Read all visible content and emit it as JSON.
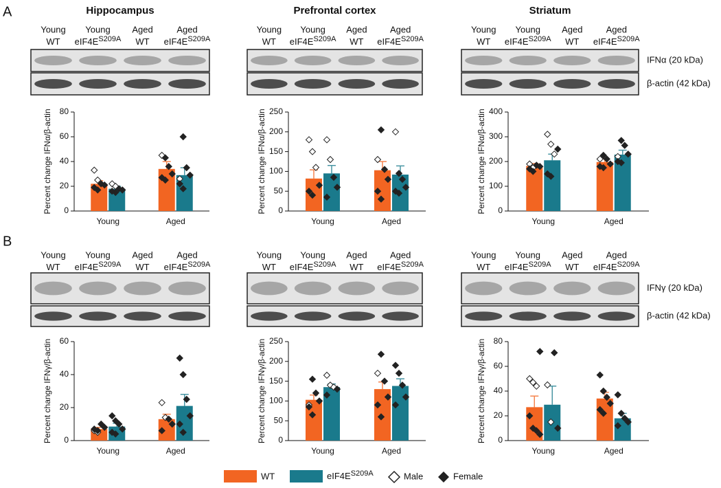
{
  "panels": [
    {
      "letter": "A",
      "target": "IFNα (20 kDa)",
      "control": "β-actin (42 kDa)"
    },
    {
      "letter": "B",
      "target": "IFNγ (20 kDa)",
      "control": "β-actin (42 kDa)"
    }
  ],
  "lanes": [
    {
      "age": "Young",
      "genotype": "WT"
    },
    {
      "age": "Young",
      "genotype": "eIF4E",
      "sup": "S209A"
    },
    {
      "age": "Aged",
      "genotype": "WT"
    },
    {
      "age": "Aged",
      "genotype": "eIF4E",
      "sup": "S209A"
    }
  ],
  "legend": {
    "male": "Male",
    "female": "Female"
  },
  "chart_data": [
    {
      "type": "bar",
      "title": "Hippocampus",
      "ylabel": "Percent change IFNα/β-actin",
      "categories": [
        "Young",
        "Aged"
      ],
      "ylim": [
        0,
        80
      ],
      "yticks": [
        0,
        20,
        40,
        60,
        80
      ],
      "series": [
        {
          "name": "WT",
          "color": "#f26522",
          "values": [
            22,
            34
          ],
          "errors": [
            2.5,
            6
          ],
          "male": [
            [
              33,
              25
            ],
            [
              45
            ]
          ],
          "female": [
            [
              22,
              21,
              19,
              17
            ],
            [
              43,
              36,
              30,
              27,
              25
            ]
          ]
        },
        {
          "name": "eIF4E",
          "name_sup": "S209A",
          "color": "#1a7a8c",
          "values": [
            18,
            29
          ],
          "errors": [
            2,
            6
          ],
          "male": [
            [
              22,
              20
            ],
            [
              26
            ]
          ],
          "female": [
            [
              18,
              17,
              16,
              15
            ],
            [
              60,
              35,
              29,
              22,
              18
            ]
          ]
        }
      ]
    },
    {
      "type": "bar",
      "title": "Prefrontal cortex",
      "ylabel": "Percent change IFNα/β-actin",
      "categories": [
        "Young",
        "Aged"
      ],
      "ylim": [
        0,
        250
      ],
      "yticks": [
        0,
        50,
        100,
        150,
        200,
        250
      ],
      "series": [
        {
          "name": "WT",
          "color": "#f26522",
          "values": [
            82,
            103
          ],
          "errors": [
            22,
            22
          ],
          "male": [
            [
              180,
              150,
              110
            ],
            [
              130
            ]
          ],
          "female": [
            [
              65,
              50,
              40
            ],
            [
              205,
              105,
              80,
              50,
              30
            ]
          ]
        },
        {
          "name": "eIF4E",
          "name_sup": "S209A",
          "color": "#1a7a8c",
          "values": [
            95,
            92
          ],
          "errors": [
            20,
            22
          ],
          "male": [
            [
              180,
              130
            ],
            [
              200
            ]
          ],
          "female": [
            [
              85,
              60,
              35
            ],
            [
              95,
              80,
              60,
              50,
              45
            ]
          ]
        }
      ]
    },
    {
      "type": "bar",
      "title": "Striatum",
      "ylabel": "Percent change IFNα/β-actin",
      "categories": [
        "Young",
        "Aged"
      ],
      "ylim": [
        0,
        400
      ],
      "yticks": [
        0,
        100,
        200,
        300,
        400
      ],
      "series": [
        {
          "name": "WT",
          "color": "#f26522",
          "values": [
            182,
            198
          ],
          "errors": [
            10,
            12
          ],
          "male": [
            [
              190,
              175
            ],
            [
              210
            ]
          ],
          "female": [
            [
              185,
              180,
              170,
              160
            ],
            [
              225,
              210,
              190,
              180,
              175
            ]
          ]
        },
        {
          "name": "eIF4E",
          "name_sup": "S209A",
          "color": "#1a7a8c",
          "values": [
            205,
            228
          ],
          "errors": [
            25,
            18
          ],
          "male": [
            [
              310,
              270,
              230
            ],
            [
              220
            ]
          ],
          "female": [
            [
              250,
              150,
              140
            ],
            [
              285,
              265,
              230,
              200,
              195
            ]
          ]
        }
      ]
    },
    {
      "type": "bar",
      "ylabel": "Percent change IFNγ/β-actin",
      "categories": [
        "Young",
        "Aged"
      ],
      "ylim": [
        0,
        60
      ],
      "yticks": [
        0,
        20,
        40,
        60
      ],
      "series": [
        {
          "name": "WT",
          "color": "#f26522",
          "values": [
            7,
            13
          ],
          "errors": [
            1,
            3
          ],
          "male": [
            [
              6,
              5
            ],
            [
              23,
              14
            ]
          ],
          "female": [
            [
              10,
              8,
              7,
              6
            ],
            [
              13,
              10,
              6
            ]
          ]
        },
        {
          "name": "eIF4E",
          "name_sup": "S209A",
          "color": "#1a7a8c",
          "values": [
            8.5,
            21
          ],
          "errors": [
            2,
            7
          ],
          "male": [
            [],
            []
          ],
          "female": [
            [
              15,
              12,
              10,
              7,
              5,
              4
            ],
            [
              50,
              40,
              25,
              15,
              10,
              5
            ]
          ]
        }
      ]
    },
    {
      "type": "bar",
      "ylabel": "Percent change IFNγ/β-actin",
      "categories": [
        "Young",
        "Aged"
      ],
      "ylim": [
        0,
        250
      ],
      "yticks": [
        0,
        50,
        100,
        150,
        200,
        250
      ],
      "series": [
        {
          "name": "WT",
          "color": "#f26522",
          "values": [
            103,
            130
          ],
          "errors": [
            12,
            18
          ],
          "male": [
            [
              90
            ],
            [
              170
            ]
          ],
          "female": [
            [
              155,
              120,
              100,
              85,
              65
            ],
            [
              218,
              150,
              110,
              90,
              60
            ]
          ]
        },
        {
          "name": "eIF4E",
          "name_sup": "S209A",
          "color": "#1a7a8c",
          "values": [
            135,
            138
          ],
          "errors": [
            8,
            18
          ],
          "male": [
            [
              165,
              140,
              135
            ],
            []
          ],
          "female": [
            [
              130,
              115
            ],
            [
              190,
              170,
              140,
              110,
              90
            ]
          ]
        }
      ]
    },
    {
      "type": "bar",
      "ylabel": "Percent change IFNγ/β-actin",
      "categories": [
        "Young",
        "Aged"
      ],
      "ylim": [
        0,
        80
      ],
      "yticks": [
        0,
        20,
        40,
        60,
        80
      ],
      "series": [
        {
          "name": "WT",
          "color": "#f26522",
          "values": [
            27,
            34
          ],
          "errors": [
            9,
            5
          ],
          "male": [
            [
              50,
              47,
              44
            ],
            []
          ],
          "female": [
            [
              72,
              20,
              10,
              8,
              5
            ],
            [
              53,
              40,
              35,
              30,
              25,
              22
            ]
          ]
        },
        {
          "name": "eIF4E",
          "name_sup": "S209A",
          "color": "#1a7a8c",
          "values": [
            29,
            18
          ],
          "errors": [
            15,
            4
          ],
          "male": [
            [
              45,
              15
            ],
            []
          ],
          "female": [
            [
              71,
              10
            ],
            [
              37,
              22,
              18,
              15,
              12
            ]
          ]
        }
      ]
    }
  ]
}
